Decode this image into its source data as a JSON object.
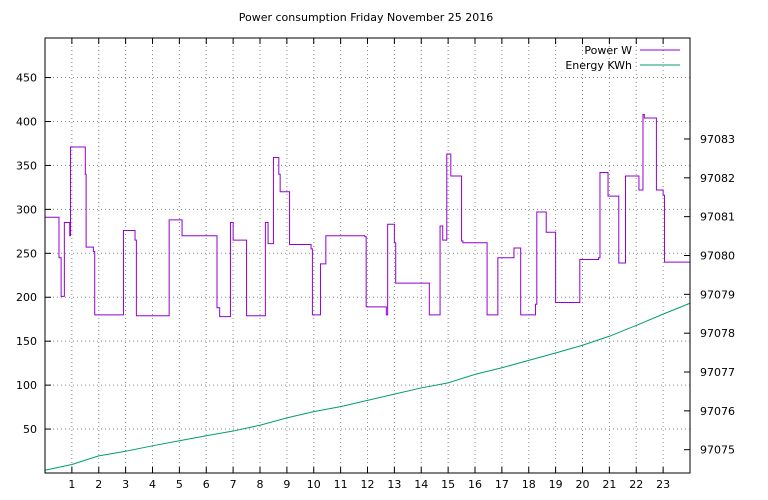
{
  "chart_data": {
    "type": "line",
    "title": "Power consumption Friday November 25 2016",
    "xlabel": "",
    "ylabel": "",
    "xlim": [
      0,
      24
    ],
    "ylim": [
      0,
      495
    ],
    "y2lim": [
      97074.4,
      97085.6
    ],
    "x_ticks": [
      1,
      2,
      3,
      4,
      5,
      6,
      7,
      8,
      9,
      10,
      11,
      12,
      13,
      14,
      15,
      16,
      17,
      18,
      19,
      20,
      21,
      22,
      23
    ],
    "x_tick_labels": [
      "1",
      "2",
      "3",
      "4",
      "5",
      "6",
      "7",
      "8",
      "9",
      "10",
      "11",
      "12",
      "13",
      "14",
      "15",
      "16",
      "17",
      "18",
      "19",
      "20",
      "21",
      "22",
      "23"
    ],
    "y_ticks": [
      50,
      100,
      150,
      200,
      250,
      300,
      350,
      400,
      450
    ],
    "y_tick_labels": [
      "50",
      "100",
      "150",
      "200",
      "250",
      "300",
      "350",
      "400",
      "450"
    ],
    "y2_ticks": [
      97075,
      97076,
      97077,
      97078,
      97079,
      97080,
      97081,
      97082,
      97083
    ],
    "y2_tick_labels": [
      "97075",
      "97076",
      "97077",
      "97078",
      "97079",
      "97080",
      "97081",
      "97082",
      "97083"
    ],
    "grid": true,
    "legend_position": "top-right",
    "series": [
      {
        "name": "Power W",
        "axis": "y",
        "color": "#9400d3",
        "step": true,
        "x": [
          0,
          0.5,
          0.52,
          0.6,
          0.68,
          0.72,
          0.9,
          0.92,
          0.95,
          1.0,
          1.5,
          1.53,
          1.6,
          1.8,
          1.85,
          2.9,
          2.92,
          3.3,
          3.35,
          3.4,
          4.6,
          4.62,
          5.05,
          5.1,
          6.4,
          6.45,
          6.5,
          6.9,
          6.95,
          7.0,
          7.5,
          7.55,
          8.2,
          8.25,
          8.3,
          8.5,
          8.55,
          8.7,
          8.75,
          9.1,
          9.15,
          9.9,
          9.95,
          10.2,
          10.25,
          10.4,
          10.45,
          11.9,
          11.95,
          12.0,
          12.7,
          12.75,
          12.8,
          13.0,
          13.05,
          14.3,
          14.35,
          14.7,
          14.73,
          14.8,
          14.95,
          15.0,
          15.1,
          15.5,
          15.55,
          16.4,
          16.45,
          16.8,
          16.85,
          17.4,
          17.45,
          17.7,
          17.75,
          18.25,
          18.3,
          18.6,
          18.65,
          19.0,
          19.05,
          19.9,
          19.95,
          20.6,
          20.65,
          20.9,
          20.95,
          21.35,
          21.4,
          21.6,
          21.65,
          22.1,
          22.15,
          22.25,
          22.3,
          22.75,
          22.8,
          23.0,
          23.05,
          23.25,
          24
        ],
        "values": [
          291,
          291,
          245,
          201,
          201,
          285,
          285,
          270,
          371,
          371,
          340,
          257,
          257,
          252,
          180,
          180,
          276,
          276,
          265,
          179,
          179,
          288,
          288,
          270,
          188,
          188,
          178,
          285,
          285,
          265,
          179,
          179,
          285,
          285,
          261,
          359,
          359,
          340,
          320,
          260,
          260,
          255,
          180,
          180,
          238,
          238,
          270,
          269,
          189,
          189,
          180,
          283,
          283,
          262,
          216,
          180,
          180,
          281,
          281,
          265,
          363,
          363,
          338,
          264,
          262,
          262,
          180,
          180,
          245,
          245,
          256,
          180,
          180,
          192,
          297,
          297,
          274,
          194,
          194,
          243,
          243,
          245,
          342,
          342,
          315,
          239,
          239,
          338,
          338,
          322,
          322,
          408,
          404,
          322,
          322,
          316,
          240,
          240,
          241
        ],
        "values_note": ""
      },
      {
        "name": "Energy KWh",
        "axis": "y2",
        "color": "#009e73",
        "step": false,
        "x": [
          0,
          1,
          2,
          3,
          4,
          5,
          6,
          7,
          8,
          9,
          10,
          11,
          12,
          13,
          14,
          15,
          16,
          17,
          18,
          19,
          20,
          21,
          22,
          23,
          24
        ],
        "values": [
          97074.47,
          97074.62,
          97074.84,
          97074.96,
          97075.1,
          97075.23,
          97075.36,
          97075.48,
          97075.63,
          97075.82,
          97075.98,
          97076.11,
          97076.27,
          97076.43,
          97076.59,
          97076.72,
          97076.94,
          97077.11,
          97077.3,
          97077.49,
          97077.69,
          97077.92,
          97078.2,
          97078.49,
          97078.77
        ]
      }
    ]
  }
}
